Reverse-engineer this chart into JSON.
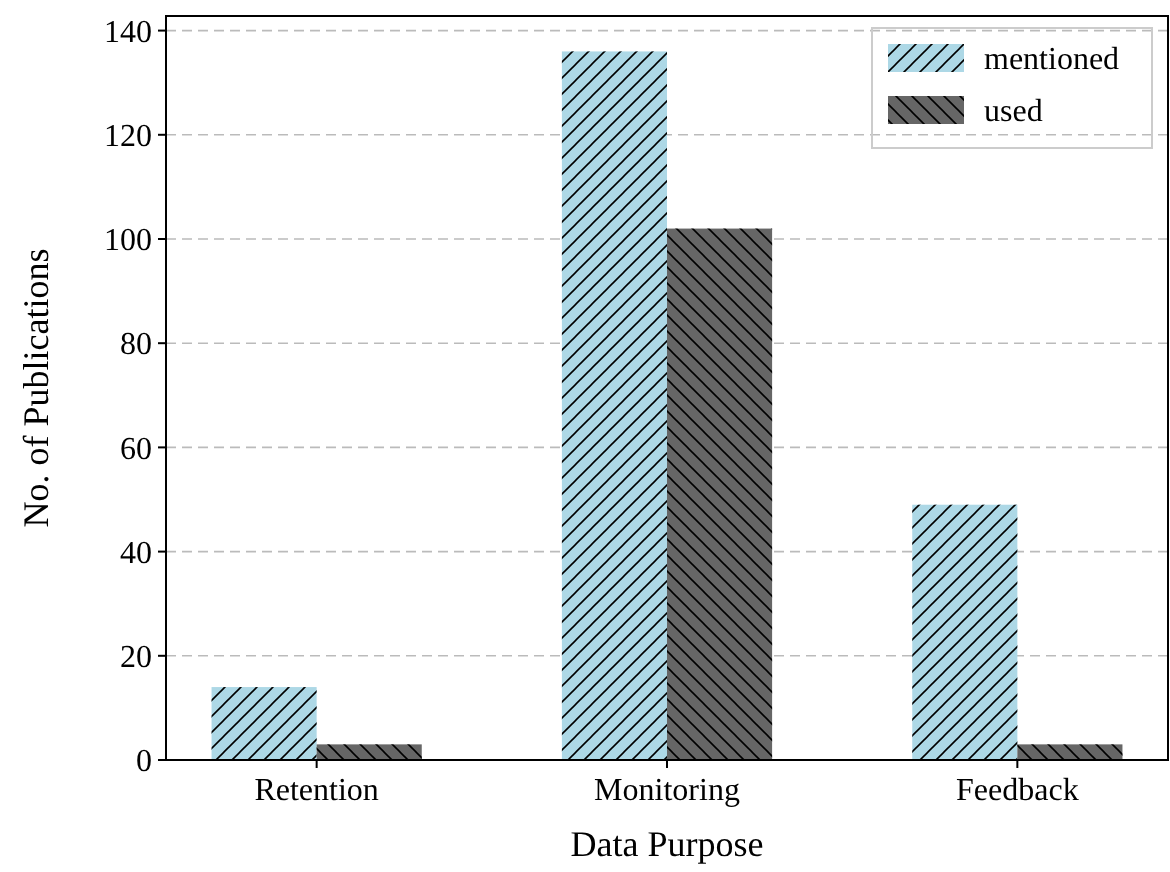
{
  "chart_data": {
    "type": "bar",
    "xlabel": "Data Purpose",
    "ylabel": "No. of Publications",
    "categories": [
      "Retention",
      "Monitoring",
      "Feedback"
    ],
    "series": [
      {
        "name": "mentioned",
        "color": "#add8e6",
        "values": [
          14,
          136,
          49
        ]
      },
      {
        "name": "used",
        "color": "#666666",
        "values": [
          3,
          102,
          3
        ]
      }
    ],
    "ylim": [
      0,
      142.8
    ],
    "yticks": [
      0,
      20,
      40,
      60,
      80,
      100,
      120,
      140
    ],
    "grid": "y",
    "legend": "top right"
  }
}
